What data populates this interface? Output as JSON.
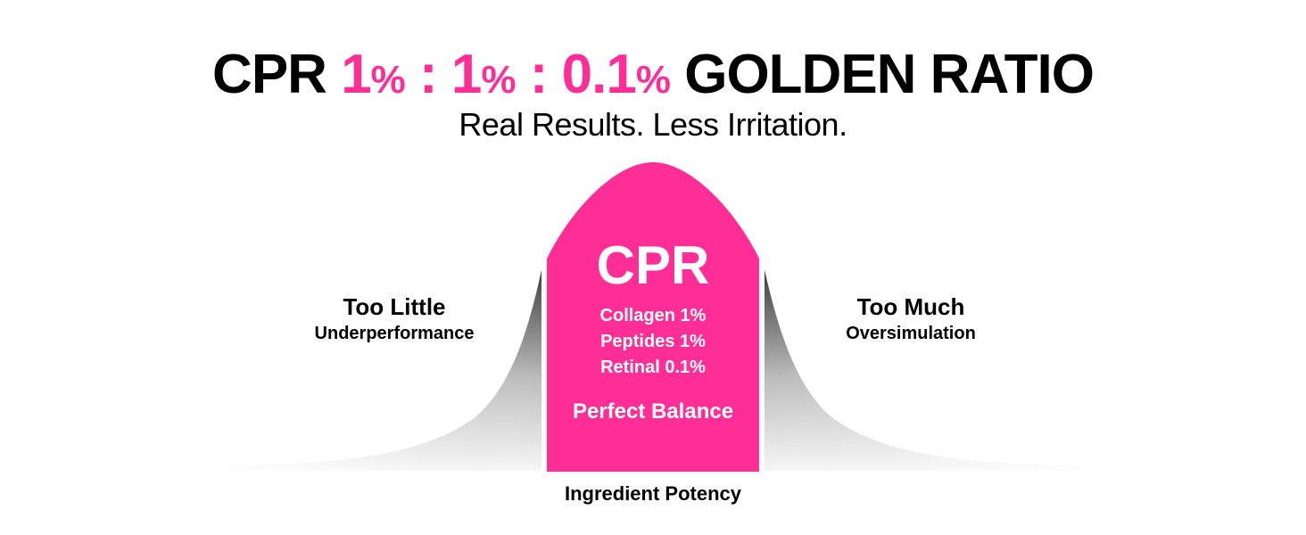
{
  "headline": {
    "prefix": "CPR",
    "ratio": [
      {
        "num": "1",
        "unit": "%"
      },
      {
        "num": "1",
        "unit": "%"
      },
      {
        "num": "0.1",
        "unit": "%"
      }
    ],
    "separator": ":",
    "suffix": "GOLDEN RATIO"
  },
  "subheadline": "Real Results. Less Irritation.",
  "left_zone": {
    "title": "Too Little",
    "subtitle": "Underperformance"
  },
  "right_zone": {
    "title": "Too Much",
    "subtitle": "Oversimulation"
  },
  "center_zone": {
    "title": "CPR",
    "ingredients": [
      "Collagen 1%",
      "Peptides 1%",
      "Retinal 0.1%"
    ],
    "caption": "Perfect Balance"
  },
  "axis_label": "Ingredient Potency",
  "colors": {
    "accent": "#ff2d96",
    "text": "#000000",
    "tail_dark": "#3a3a3a",
    "tail_light": "#f2f2f2",
    "background": "#ffffff"
  }
}
